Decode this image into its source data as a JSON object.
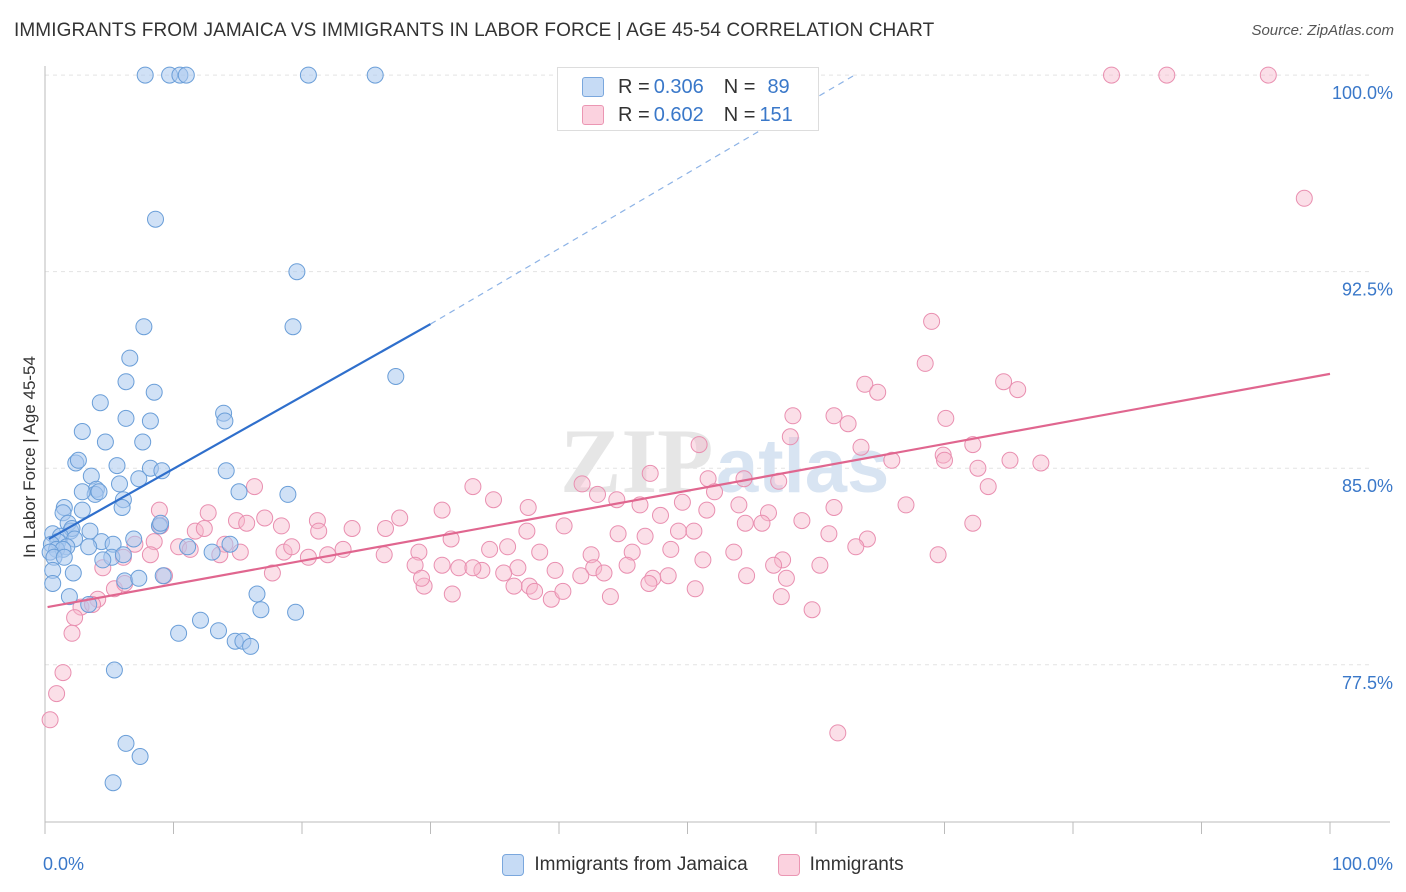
{
  "title": "IMMIGRANTS FROM JAMAICA VS IMMIGRANTS IN LABOR FORCE | AGE 45-54 CORRELATION CHART",
  "source": "Source: ZipAtlas.com",
  "watermark": {
    "zip": "ZIP",
    "atlas": "atlas"
  },
  "stats": {
    "series1": {
      "r_label": "R = ",
      "r_value": "0.306",
      "n_label": "N = ",
      "n_value": "89",
      "color": "#a9c8ef"
    },
    "series2": {
      "r_label": "R = ",
      "r_value": "0.602",
      "n_label": "N = ",
      "n_value": "151",
      "color": "#f6b8cd"
    }
  },
  "legend": {
    "series1": "Immigrants from Jamaica",
    "series2": "Immigrants"
  },
  "chart_data": {
    "type": "scatter",
    "title": "IMMIGRANTS FROM JAMAICA VS IMMIGRANTS IN LABOR FORCE | AGE 45-54 CORRELATION CHART",
    "xlabel": "",
    "ylabel": "In Labor Force | Age 45-54",
    "xlim": [
      0,
      100
    ],
    "ylim": [
      71.5,
      100.5
    ],
    "x_tick_labels": [
      "0.0%",
      "100.0%"
    ],
    "y_ticks": [
      77.5,
      85.0,
      92.5,
      100.0
    ],
    "y_tick_labels": [
      "77.5%",
      "85.0%",
      "92.5%",
      "100.0%"
    ],
    "grid": true,
    "legend_position": "bottom",
    "colors": {
      "series1": "#3a78c9",
      "series1_fill": "#a9c8ef",
      "series2": "#e8709a",
      "series2_fill": "#f6b8cd"
    },
    "series": [
      {
        "name": "Immigrants from Jamaica",
        "trend": {
          "x": [
            0.3,
            30
          ],
          "y": [
            82.3,
            90.5
          ],
          "dashed_to": [
            63,
            100
          ]
        },
        "points": [
          [
            7.8,
            100
          ],
          [
            9.7,
            100
          ],
          [
            10.5,
            100
          ],
          [
            11.0,
            100
          ],
          [
            20.5,
            100
          ],
          [
            25.7,
            100
          ],
          [
            8.6,
            94.5
          ],
          [
            19.6,
            92.5
          ],
          [
            7.7,
            90.4
          ],
          [
            19.3,
            90.4
          ],
          [
            27.3,
            88.5
          ],
          [
            6.6,
            89.2
          ],
          [
            6.3,
            88.3
          ],
          [
            8.5,
            87.9
          ],
          [
            4.3,
            87.5
          ],
          [
            6.3,
            86.9
          ],
          [
            8.2,
            86.8
          ],
          [
            13.9,
            87.1
          ],
          [
            14.0,
            86.8
          ],
          [
            2.9,
            86.4
          ],
          [
            4.7,
            86.0
          ],
          [
            7.6,
            86.0
          ],
          [
            2.4,
            85.2
          ],
          [
            2.6,
            85.3
          ],
          [
            5.6,
            85.1
          ],
          [
            8.2,
            85.0
          ],
          [
            9.1,
            84.9
          ],
          [
            14.1,
            84.9
          ],
          [
            3.6,
            84.7
          ],
          [
            5.8,
            84.4
          ],
          [
            7.3,
            84.6
          ],
          [
            4.0,
            84.2
          ],
          [
            3.9,
            84.0
          ],
          [
            4.2,
            84.1
          ],
          [
            2.9,
            84.1
          ],
          [
            6.1,
            83.8
          ],
          [
            15.1,
            84.1
          ],
          [
            18.9,
            84.0
          ],
          [
            1.5,
            83.5
          ],
          [
            2.9,
            83.4
          ],
          [
            6.0,
            83.5
          ],
          [
            1.4,
            83.3
          ],
          [
            1.8,
            82.9
          ],
          [
            2.0,
            82.6
          ],
          [
            2.1,
            82.7
          ],
          [
            3.5,
            82.6
          ],
          [
            8.9,
            82.8
          ],
          [
            9.0,
            82.9
          ],
          [
            0.6,
            82.5
          ],
          [
            1.2,
            82.4
          ],
          [
            2.3,
            82.3
          ],
          [
            4.4,
            82.2
          ],
          [
            1.0,
            82.2
          ],
          [
            1.7,
            82.0
          ],
          [
            6.9,
            82.3
          ],
          [
            0.5,
            82.1
          ],
          [
            0.9,
            81.9
          ],
          [
            1.4,
            81.9
          ],
          [
            3.4,
            82.0
          ],
          [
            5.3,
            82.1
          ],
          [
            0.4,
            81.8
          ],
          [
            0.7,
            81.6
          ],
          [
            1.5,
            81.6
          ],
          [
            5.2,
            81.6
          ],
          [
            11.1,
            82.0
          ],
          [
            13.0,
            81.8
          ],
          [
            14.4,
            82.1
          ],
          [
            6.1,
            81.7
          ],
          [
            4.5,
            81.5
          ],
          [
            2.2,
            81.0
          ],
          [
            0.6,
            81.1
          ],
          [
            6.2,
            80.7
          ],
          [
            0.6,
            80.6
          ],
          [
            9.2,
            80.9
          ],
          [
            7.3,
            80.8
          ],
          [
            1.9,
            80.1
          ],
          [
            3.4,
            79.8
          ],
          [
            16.5,
            80.2
          ],
          [
            16.8,
            79.6
          ],
          [
            19.5,
            79.5
          ],
          [
            12.1,
            79.2
          ],
          [
            13.5,
            78.8
          ],
          [
            10.4,
            78.7
          ],
          [
            14.8,
            78.4
          ],
          [
            15.4,
            78.4
          ],
          [
            16.0,
            78.2
          ],
          [
            5.4,
            77.3
          ],
          [
            6.3,
            74.5
          ],
          [
            7.4,
            74.0
          ],
          [
            5.3,
            73.0
          ]
        ]
      },
      {
        "name": "Immigrants",
        "trend": {
          "x": [
            0.2,
            100
          ],
          "y": [
            79.7,
            88.6
          ]
        },
        "points": [
          [
            83.0,
            100
          ],
          [
            87.3,
            100
          ],
          [
            95.2,
            100
          ],
          [
            98.0,
            95.3
          ],
          [
            69.0,
            90.6
          ],
          [
            68.5,
            89.0
          ],
          [
            63.8,
            88.2
          ],
          [
            64.8,
            87.9
          ],
          [
            74.6,
            88.3
          ],
          [
            75.7,
            88.0
          ],
          [
            58.2,
            87.0
          ],
          [
            61.4,
            87.0
          ],
          [
            62.5,
            86.7
          ],
          [
            70.1,
            86.9
          ],
          [
            58.0,
            86.2
          ],
          [
            50.9,
            85.9
          ],
          [
            63.5,
            85.8
          ],
          [
            72.2,
            85.9
          ],
          [
            75.1,
            85.3
          ],
          [
            69.9,
            85.5
          ],
          [
            72.6,
            85.0
          ],
          [
            77.5,
            85.2
          ],
          [
            47.1,
            84.8
          ],
          [
            51.6,
            84.6
          ],
          [
            54.4,
            84.6
          ],
          [
            57.1,
            84.5
          ],
          [
            65.9,
            85.3
          ],
          [
            70.0,
            85.3
          ],
          [
            73.4,
            84.3
          ],
          [
            16.3,
            84.3
          ],
          [
            33.3,
            84.3
          ],
          [
            34.9,
            83.8
          ],
          [
            41.8,
            84.4
          ],
          [
            52.1,
            84.1
          ],
          [
            54.0,
            83.6
          ],
          [
            49.6,
            83.7
          ],
          [
            56.3,
            83.3
          ],
          [
            8.9,
            83.4
          ],
          [
            12.7,
            83.3
          ],
          [
            14.9,
            83.0
          ],
          [
            17.1,
            83.1
          ],
          [
            21.2,
            83.0
          ],
          [
            27.6,
            83.1
          ],
          [
            30.9,
            83.4
          ],
          [
            37.6,
            83.5
          ],
          [
            44.5,
            83.8
          ],
          [
            46.3,
            83.6
          ],
          [
            47.9,
            83.2
          ],
          [
            51.5,
            83.4
          ],
          [
            55.8,
            82.9
          ],
          [
            61.4,
            83.5
          ],
          [
            67.0,
            83.6
          ],
          [
            72.2,
            82.9
          ],
          [
            9.0,
            82.8
          ],
          [
            11.7,
            82.6
          ],
          [
            12.4,
            82.7
          ],
          [
            15.7,
            82.9
          ],
          [
            18.4,
            82.8
          ],
          [
            21.3,
            82.6
          ],
          [
            23.9,
            82.7
          ],
          [
            26.5,
            82.7
          ],
          [
            31.6,
            82.3
          ],
          [
            37.5,
            82.6
          ],
          [
            40.4,
            82.8
          ],
          [
            44.6,
            82.5
          ],
          [
            46.7,
            82.4
          ],
          [
            49.3,
            82.6
          ],
          [
            50.5,
            82.6
          ],
          [
            54.5,
            82.9
          ],
          [
            61.0,
            82.5
          ],
          [
            64.0,
            82.3
          ],
          [
            7.0,
            82.1
          ],
          [
            8.5,
            82.2
          ],
          [
            10.4,
            82.0
          ],
          [
            11.3,
            81.9
          ],
          [
            14.0,
            82.1
          ],
          [
            15.2,
            81.8
          ],
          [
            18.6,
            81.8
          ],
          [
            19.2,
            82.0
          ],
          [
            22.0,
            81.7
          ],
          [
            23.2,
            81.9
          ],
          [
            29.1,
            81.8
          ],
          [
            34.6,
            81.9
          ],
          [
            36.0,
            82.0
          ],
          [
            38.5,
            81.8
          ],
          [
            42.5,
            81.7
          ],
          [
            45.7,
            81.8
          ],
          [
            48.7,
            81.9
          ],
          [
            53.6,
            81.8
          ],
          [
            57.4,
            81.5
          ],
          [
            63.1,
            82.0
          ],
          [
            69.5,
            81.7
          ],
          [
            6.1,
            81.6
          ],
          [
            8.2,
            81.7
          ],
          [
            20.5,
            81.6
          ],
          [
            26.4,
            81.7
          ],
          [
            28.8,
            81.3
          ],
          [
            30.9,
            81.3
          ],
          [
            34.0,
            81.1
          ],
          [
            36.8,
            81.2
          ],
          [
            39.7,
            81.1
          ],
          [
            42.7,
            81.2
          ],
          [
            45.3,
            81.3
          ],
          [
            51.2,
            81.5
          ],
          [
            56.7,
            81.3
          ],
          [
            60.3,
            81.3
          ],
          [
            4.5,
            81.2
          ],
          [
            17.7,
            81.0
          ],
          [
            32.2,
            81.2
          ],
          [
            33.3,
            81.2
          ],
          [
            35.7,
            81.0
          ],
          [
            37.7,
            80.5
          ],
          [
            41.7,
            80.9
          ],
          [
            43.5,
            81.0
          ],
          [
            47.3,
            80.8
          ],
          [
            48.5,
            80.9
          ],
          [
            54.6,
            80.9
          ],
          [
            57.7,
            80.8
          ],
          [
            5.4,
            80.4
          ],
          [
            6.2,
            80.6
          ],
          [
            29.5,
            80.5
          ],
          [
            31.7,
            80.2
          ],
          [
            36.5,
            80.5
          ],
          [
            38.1,
            80.3
          ],
          [
            39.4,
            80.0
          ],
          [
            40.3,
            80.3
          ],
          [
            44.0,
            80.1
          ],
          [
            47.0,
            80.6
          ],
          [
            50.6,
            80.4
          ],
          [
            4.1,
            80.0
          ],
          [
            2.8,
            79.7
          ],
          [
            3.7,
            79.8
          ],
          [
            2.3,
            79.3
          ],
          [
            2.1,
            78.7
          ],
          [
            57.3,
            80.1
          ],
          [
            59.7,
            79.6
          ],
          [
            13.6,
            81.7
          ],
          [
            9.3,
            80.9
          ],
          [
            1.4,
            77.2
          ],
          [
            0.9,
            76.4
          ],
          [
            0.4,
            75.4
          ],
          [
            61.7,
            74.9
          ],
          [
            29.3,
            80.8
          ],
          [
            43.0,
            84.0
          ],
          [
            58.9,
            83.0
          ]
        ]
      }
    ]
  }
}
